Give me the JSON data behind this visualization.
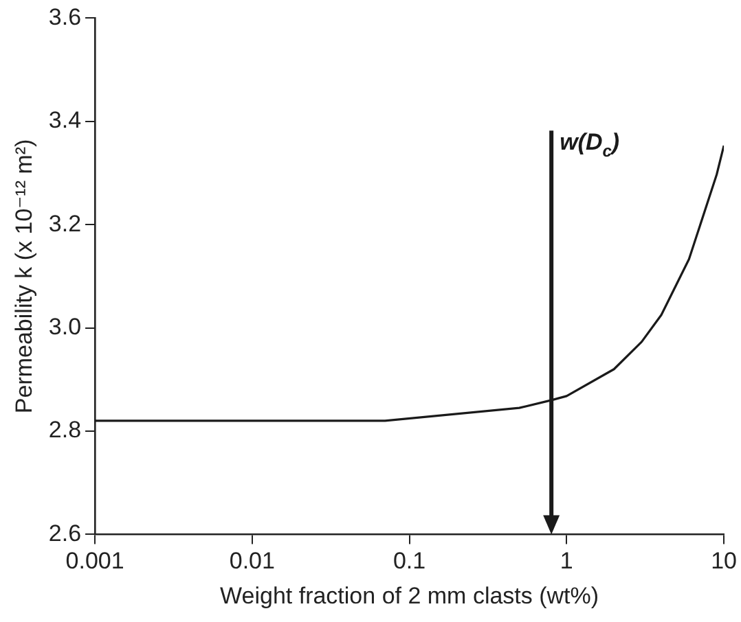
{
  "chart_data": {
    "type": "line",
    "xlabel": "Weight fraction of 2 mm clasts (wt%)",
    "ylabel": "Permeability k (x 10⁻¹² m²)",
    "x": [
      0.001,
      0.07,
      0.5,
      0.8,
      1,
      2,
      3,
      4,
      6,
      9,
      10
    ],
    "series": [
      {
        "color": "#1a1a1a",
        "values": [
          2.82,
          2.82,
          2.845,
          2.86,
          2.868,
          2.92,
          2.973,
          3.025,
          3.133,
          3.297,
          3.353
        ]
      }
    ],
    "log": "x",
    "xlim": [
      0.001,
      10
    ],
    "xticks": [
      0.001,
      0.01,
      0.1,
      1,
      10
    ],
    "ylim": [
      2.6,
      3.6
    ],
    "yticks": [
      2.6,
      2.8,
      {
        "value": 3,
        "label": "3.0"
      },
      3.2,
      3.4,
      3.6
    ],
    "ref_lines": [
      {
        "axis": "x",
        "value": 0.8,
        "label": "w(D$_{c}$)",
        "color": "#1a1a1a"
      }
    ],
    "grid": false,
    "legend": false,
    "marker": "none",
    "line_style": "solid"
  }
}
